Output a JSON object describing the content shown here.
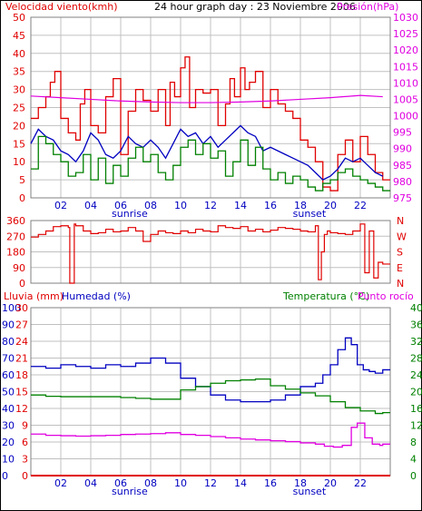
{
  "header": {
    "left_label": "Velocidad viento(kmh)",
    "title": "24 hour graph day : 23 Noviembre 2006",
    "right_label": "Presión(hPa)"
  },
  "colors": {
    "red": "#e00000",
    "blue": "#0000c0",
    "green": "#008000",
    "magenta": "#e000e0",
    "grid": "#c0c0c0",
    "axis_black": "#000000"
  },
  "x_axis": {
    "ticks": [
      "02",
      "04",
      "06",
      "08",
      "10",
      "12",
      "14",
      "16",
      "18",
      "20",
      "22"
    ],
    "sunrise_label": "sunrise",
    "sunset_label": "sunset"
  },
  "chart_data": [
    {
      "type": "line",
      "title": "24 hour graph day : 23 Noviembre 2006",
      "x_range": [
        0,
        24
      ],
      "ylabel_left": "Velocidad viento(kmh)",
      "ylim_left": [
        0,
        50
      ],
      "yticks_left": [
        0,
        5,
        10,
        15,
        20,
        25,
        30,
        35,
        40,
        45,
        50
      ],
      "ylabel_right": "Presión(hPa)",
      "ylim_right": [
        975,
        1030
      ],
      "yticks_right": [
        975,
        980,
        985,
        990,
        995,
        1000,
        1005,
        1010,
        1015,
        1020,
        1025,
        1030
      ],
      "series": [
        {
          "color": "#e00000",
          "axis": "left",
          "step": true,
          "x": [
            0.0,
            0.5,
            1.0,
            1.3,
            1.6,
            2.0,
            2.5,
            3.0,
            3.3,
            3.6,
            4.0,
            4.5,
            5.0,
            5.5,
            6.0,
            6.5,
            7.0,
            7.5,
            8.0,
            8.5,
            9.0,
            9.3,
            9.6,
            10.0,
            10.3,
            10.6,
            11.0,
            11.5,
            12.0,
            12.5,
            13.0,
            13.3,
            13.6,
            14.0,
            14.3,
            14.6,
            15.0,
            15.5,
            16.0,
            16.5,
            17.0,
            17.5,
            18.0,
            18.5,
            19.0,
            19.5,
            20.0,
            20.5,
            21.0,
            21.5,
            22.0,
            22.5,
            23.0,
            23.5
          ],
          "y": [
            22,
            25,
            28,
            32,
            35,
            22,
            18,
            16,
            26,
            30,
            20,
            18,
            28,
            33,
            12,
            24,
            30,
            27,
            24,
            30,
            20,
            32,
            28,
            36,
            39,
            25,
            30,
            29,
            30,
            20,
            26,
            33,
            28,
            36,
            30,
            32,
            35,
            25,
            30,
            26,
            24,
            22,
            16,
            14,
            10,
            3,
            2,
            12,
            16,
            10,
            17,
            12,
            7,
            5
          ]
        },
        {
          "color": "#0000c0",
          "axis": "left",
          "step": false,
          "x": [
            0.0,
            0.5,
            1.0,
            1.5,
            2.0,
            2.5,
            3.0,
            3.5,
            4.0,
            4.5,
            5.0,
            5.5,
            6.0,
            6.5,
            7.0,
            7.5,
            8.0,
            8.5,
            9.0,
            9.5,
            10.0,
            10.5,
            11.0,
            11.5,
            12.0,
            12.5,
            13.0,
            13.5,
            14.0,
            14.5,
            15.0,
            15.5,
            16.0,
            16.5,
            17.0,
            17.5,
            18.0,
            18.5,
            19.0,
            19.5,
            20.0,
            20.5,
            21.0,
            21.5,
            22.0,
            22.5,
            23.0,
            23.5
          ],
          "y": [
            15,
            19,
            17,
            16,
            13,
            12,
            10,
            13,
            18,
            16,
            12,
            11,
            13,
            17,
            15,
            14,
            16,
            14,
            11,
            15,
            19,
            17,
            18,
            15,
            17,
            14,
            16,
            18,
            20,
            18,
            17,
            13,
            14,
            13,
            12,
            11,
            10,
            9,
            7,
            5,
            6,
            8,
            11,
            10,
            11,
            9,
            7,
            6
          ]
        },
        {
          "color": "#008000",
          "axis": "left",
          "step": true,
          "x": [
            0.0,
            0.5,
            1.0,
            1.5,
            2.0,
            2.5,
            3.0,
            3.5,
            4.0,
            4.5,
            5.0,
            5.5,
            6.0,
            6.5,
            7.0,
            7.5,
            8.0,
            8.5,
            9.0,
            9.5,
            10.0,
            10.5,
            11.0,
            11.5,
            12.0,
            12.5,
            13.0,
            13.5,
            14.0,
            14.5,
            15.0,
            15.5,
            16.0,
            16.5,
            17.0,
            17.5,
            18.0,
            18.5,
            19.0,
            19.5,
            20.0,
            20.5,
            21.0,
            21.5,
            22.0,
            22.5,
            23.0,
            23.5
          ],
          "y": [
            8,
            17,
            15,
            12,
            10,
            6,
            7,
            12,
            5,
            11,
            4,
            9,
            6,
            11,
            14,
            10,
            12,
            7,
            5,
            9,
            14,
            16,
            12,
            15,
            11,
            13,
            6,
            10,
            16,
            9,
            14,
            8,
            5,
            7,
            4,
            6,
            5,
            3,
            2,
            4,
            5,
            7,
            8,
            6,
            5,
            4,
            3,
            2
          ]
        },
        {
          "color": "#e000e0",
          "axis": "right",
          "step": false,
          "x": [
            0,
            2,
            4,
            6,
            8,
            10,
            12,
            14,
            16,
            18,
            20,
            22,
            23.5
          ],
          "y": [
            1006.0,
            1005.5,
            1005.0,
            1004.5,
            1004.2,
            1004.0,
            1004.0,
            1004.2,
            1004.5,
            1005.0,
            1005.5,
            1006.2,
            1005.8
          ]
        }
      ]
    },
    {
      "type": "line",
      "x_range": [
        0,
        24
      ],
      "ylim": [
        0,
        360
      ],
      "yticks": [
        0,
        90,
        180,
        270,
        360
      ],
      "right_labels": [
        "N",
        "W",
        "S",
        "E",
        "N"
      ],
      "series": [
        {
          "color": "#e00000",
          "step": true,
          "x": [
            0.0,
            0.5,
            1.0,
            1.5,
            2.0,
            2.5,
            2.6,
            2.9,
            3.0,
            3.5,
            4.0,
            4.5,
            5.0,
            5.5,
            6.0,
            6.5,
            7.0,
            7.5,
            8.0,
            8.5,
            9.0,
            9.5,
            10.0,
            10.5,
            11.0,
            11.5,
            12.0,
            12.5,
            13.0,
            13.5,
            14.0,
            14.5,
            15.0,
            15.5,
            16.0,
            16.5,
            17.0,
            17.5,
            18.0,
            18.5,
            19.0,
            19.2,
            19.4,
            19.6,
            19.8,
            20.0,
            20.5,
            21.0,
            21.5,
            22.0,
            22.3,
            22.6,
            22.9,
            23.2,
            23.5
          ],
          "y": [
            265,
            280,
            300,
            325,
            330,
            320,
            0,
            340,
            330,
            300,
            285,
            290,
            310,
            295,
            300,
            320,
            300,
            240,
            280,
            300,
            290,
            285,
            300,
            290,
            310,
            300,
            295,
            330,
            320,
            315,
            325,
            300,
            310,
            295,
            305,
            320,
            315,
            310,
            300,
            295,
            330,
            20,
            180,
            280,
            300,
            290,
            285,
            280,
            300,
            340,
            60,
            300,
            30,
            120,
            110
          ]
        }
      ]
    },
    {
      "type": "line",
      "x_range": [
        0,
        24
      ],
      "ylabels_left": [
        "Lluvia (mm)",
        "Humedad (%)"
      ],
      "ylim_lluvia": [
        0,
        30
      ],
      "yticks_lluvia": [
        0,
        3,
        6,
        9,
        12,
        15,
        18,
        21,
        24,
        27,
        30
      ],
      "ylim_humedad": [
        0,
        100
      ],
      "yticks_humedad": [
        0,
        10,
        20,
        30,
        40,
        50,
        60,
        70,
        80,
        90,
        100
      ],
      "ylabels_right": [
        "Temperatura (°C)",
        "Punto rocío"
      ],
      "ylim_temp": [
        0,
        40
      ],
      "yticks_temp": [
        0,
        4,
        8,
        12,
        16,
        20,
        24,
        28,
        32,
        36,
        40
      ],
      "series": [
        {
          "color": "#0000c0",
          "axis": "humedad",
          "step": true,
          "x": [
            0,
            1,
            2,
            3,
            4,
            5,
            6,
            7,
            8,
            9,
            10,
            11,
            12,
            13,
            14,
            15,
            16,
            17,
            18,
            19,
            19.5,
            20,
            20.5,
            21,
            21.4,
            21.8,
            22.2,
            22.6,
            23,
            23.5
          ],
          "y": [
            65,
            64,
            66,
            65,
            64,
            66,
            65,
            67,
            70,
            67,
            58,
            53,
            48,
            45,
            44,
            44,
            45,
            48,
            53,
            55,
            60,
            66,
            75,
            82,
            78,
            66,
            63,
            62,
            61,
            63
          ]
        },
        {
          "color": "#008000",
          "axis": "temp",
          "step": true,
          "x": [
            0,
            1,
            2,
            3,
            4,
            5,
            6,
            7,
            8,
            9,
            10,
            11,
            12,
            13,
            14,
            15,
            16,
            17,
            18,
            19,
            20,
            21,
            22,
            23,
            23.5
          ],
          "y": [
            19.2,
            18.9,
            18.8,
            18.8,
            18.8,
            18.8,
            18.6,
            18.4,
            18.2,
            18.2,
            20.4,
            21.2,
            22.0,
            22.6,
            22.8,
            23.0,
            21.4,
            20.6,
            19.7,
            19.0,
            17.6,
            16.2,
            15.4,
            14.8,
            15.0
          ]
        },
        {
          "color": "#e000e0",
          "axis": "temp",
          "step": true,
          "x": [
            0,
            1,
            2,
            3,
            4,
            5,
            6,
            7,
            8,
            9,
            10,
            11,
            12,
            13,
            14,
            15,
            16,
            17,
            18,
            19,
            19.6,
            20.2,
            20.8,
            21.4,
            21.8,
            22.3,
            22.8,
            23.3,
            23.5
          ],
          "y": [
            9.9,
            9.6,
            9.5,
            9.4,
            9.5,
            9.6,
            9.8,
            9.9,
            10.0,
            10.2,
            9.8,
            9.6,
            9.3,
            9.0,
            8.7,
            8.5,
            8.3,
            8.1,
            7.8,
            7.5,
            7.0,
            6.8,
            7.2,
            11.5,
            12.5,
            9.0,
            7.5,
            7.2,
            7.5
          ]
        },
        {
          "color": "#e00000",
          "axis": "lluvia",
          "step": true,
          "x": [
            0,
            24
          ],
          "y": [
            0,
            0
          ]
        }
      ]
    }
  ]
}
